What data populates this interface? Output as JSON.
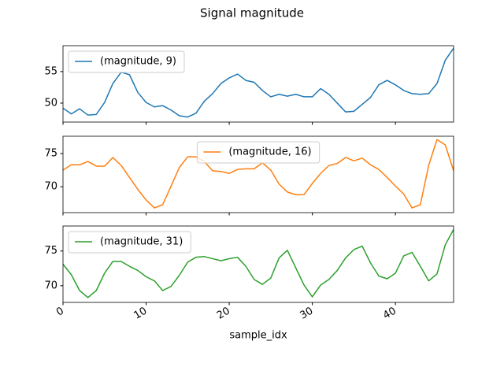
{
  "chart_data": [
    {
      "type": "line",
      "title": "Signal magnitude",
      "legend": "upper left",
      "x": [
        0,
        1,
        2,
        3,
        4,
        5,
        6,
        7,
        8,
        9,
        10,
        11,
        12,
        13,
        14,
        15,
        16,
        17,
        18,
        19,
        20,
        21,
        22,
        23,
        24,
        25,
        26,
        27,
        28,
        29,
        30,
        31,
        32,
        33,
        34,
        35,
        36,
        37,
        38,
        39,
        40,
        41,
        42,
        43,
        44,
        45,
        46,
        47
      ],
      "series": [
        {
          "name": "(magnitude, 9)",
          "color": "#1f77b4",
          "values": [
            49.2,
            48.3,
            49.1,
            48.1,
            48.2,
            50.1,
            53.1,
            54.9,
            54.5,
            51.7,
            50.1,
            49.4,
            49.6,
            48.9,
            48.0,
            47.8,
            48.4,
            50.3,
            51.5,
            53.1,
            54.0,
            54.6,
            53.6,
            53.3,
            52.0,
            51.0,
            51.4,
            51.1,
            51.4,
            51.0,
            51.0,
            52.3,
            51.4,
            50.0,
            48.6,
            48.7,
            49.8,
            50.9,
            52.9,
            53.6,
            52.9,
            52.0,
            51.5,
            51.4,
            51.5,
            53.1,
            56.8,
            58.7
          ]
        }
      ],
      "xlim": [
        0,
        47
      ],
      "xticks": [
        0,
        10,
        20,
        30,
        40
      ],
      "ylim": [
        47.0,
        59.1
      ],
      "yticks": [
        50,
        55
      ]
    },
    {
      "type": "line",
      "legend": "upper center",
      "x": [
        0,
        1,
        2,
        3,
        4,
        5,
        6,
        7,
        8,
        9,
        10,
        11,
        12,
        13,
        14,
        15,
        16,
        17,
        18,
        19,
        20,
        21,
        22,
        23,
        24,
        25,
        26,
        27,
        28,
        29,
        30,
        31,
        32,
        33,
        34,
        35,
        36,
        37,
        38,
        39,
        40,
        41,
        42,
        43,
        44,
        45,
        46,
        47
      ],
      "series": [
        {
          "name": "(magnitude, 16)",
          "color": "#ff7f0e",
          "values": [
            72.5,
            73.3,
            73.3,
            73.8,
            73.1,
            73.1,
            74.4,
            73.2,
            71.4,
            69.6,
            68.0,
            66.8,
            67.3,
            70.1,
            72.9,
            74.5,
            74.5,
            73.8,
            72.4,
            72.3,
            72.0,
            72.6,
            72.7,
            72.7,
            73.6,
            72.5,
            70.4,
            69.2,
            68.8,
            68.8,
            70.5,
            72.0,
            73.2,
            73.5,
            74.4,
            73.9,
            74.3,
            73.3,
            72.6,
            71.4,
            70.1,
            68.9,
            66.8,
            67.3,
            73.2,
            77.1,
            76.3,
            72.4
          ]
        }
      ],
      "xlim": [
        0,
        47
      ],
      "xticks": [
        0,
        10,
        20,
        30,
        40
      ],
      "ylim": [
        66.1,
        77.6
      ],
      "yticks": [
        70,
        75
      ]
    },
    {
      "type": "line",
      "legend": "upper left",
      "x_label": "sample_idx",
      "x": [
        0,
        1,
        2,
        3,
        4,
        5,
        6,
        7,
        8,
        9,
        10,
        11,
        12,
        13,
        14,
        15,
        16,
        17,
        18,
        19,
        20,
        21,
        22,
        23,
        24,
        25,
        26,
        27,
        28,
        29,
        30,
        31,
        32,
        33,
        34,
        35,
        36,
        37,
        38,
        39,
        40,
        41,
        42,
        43,
        44,
        45,
        46,
        47
      ],
      "series": [
        {
          "name": "(magnitude, 31)",
          "color": "#2ca02c",
          "values": [
            73.1,
            71.6,
            69.3,
            68.3,
            69.3,
            71.8,
            73.5,
            73.5,
            72.8,
            72.2,
            71.3,
            70.7,
            69.3,
            69.9,
            71.5,
            73.4,
            74.1,
            74.2,
            73.9,
            73.6,
            73.9,
            74.1,
            72.8,
            70.9,
            70.2,
            71.1,
            74.0,
            75.1,
            72.6,
            70.1,
            68.4,
            70.1,
            70.9,
            72.2,
            74.0,
            75.2,
            75.7,
            73.3,
            71.4,
            71.0,
            71.8,
            74.3,
            74.8,
            72.8,
            70.7,
            71.7,
            75.9,
            78.1
          ]
        }
      ],
      "xlim": [
        0,
        47
      ],
      "xticks": [
        0,
        10,
        20,
        30,
        40
      ],
      "ylim": [
        67.6,
        78.6
      ],
      "yticks": [
        70,
        75
      ]
    }
  ]
}
